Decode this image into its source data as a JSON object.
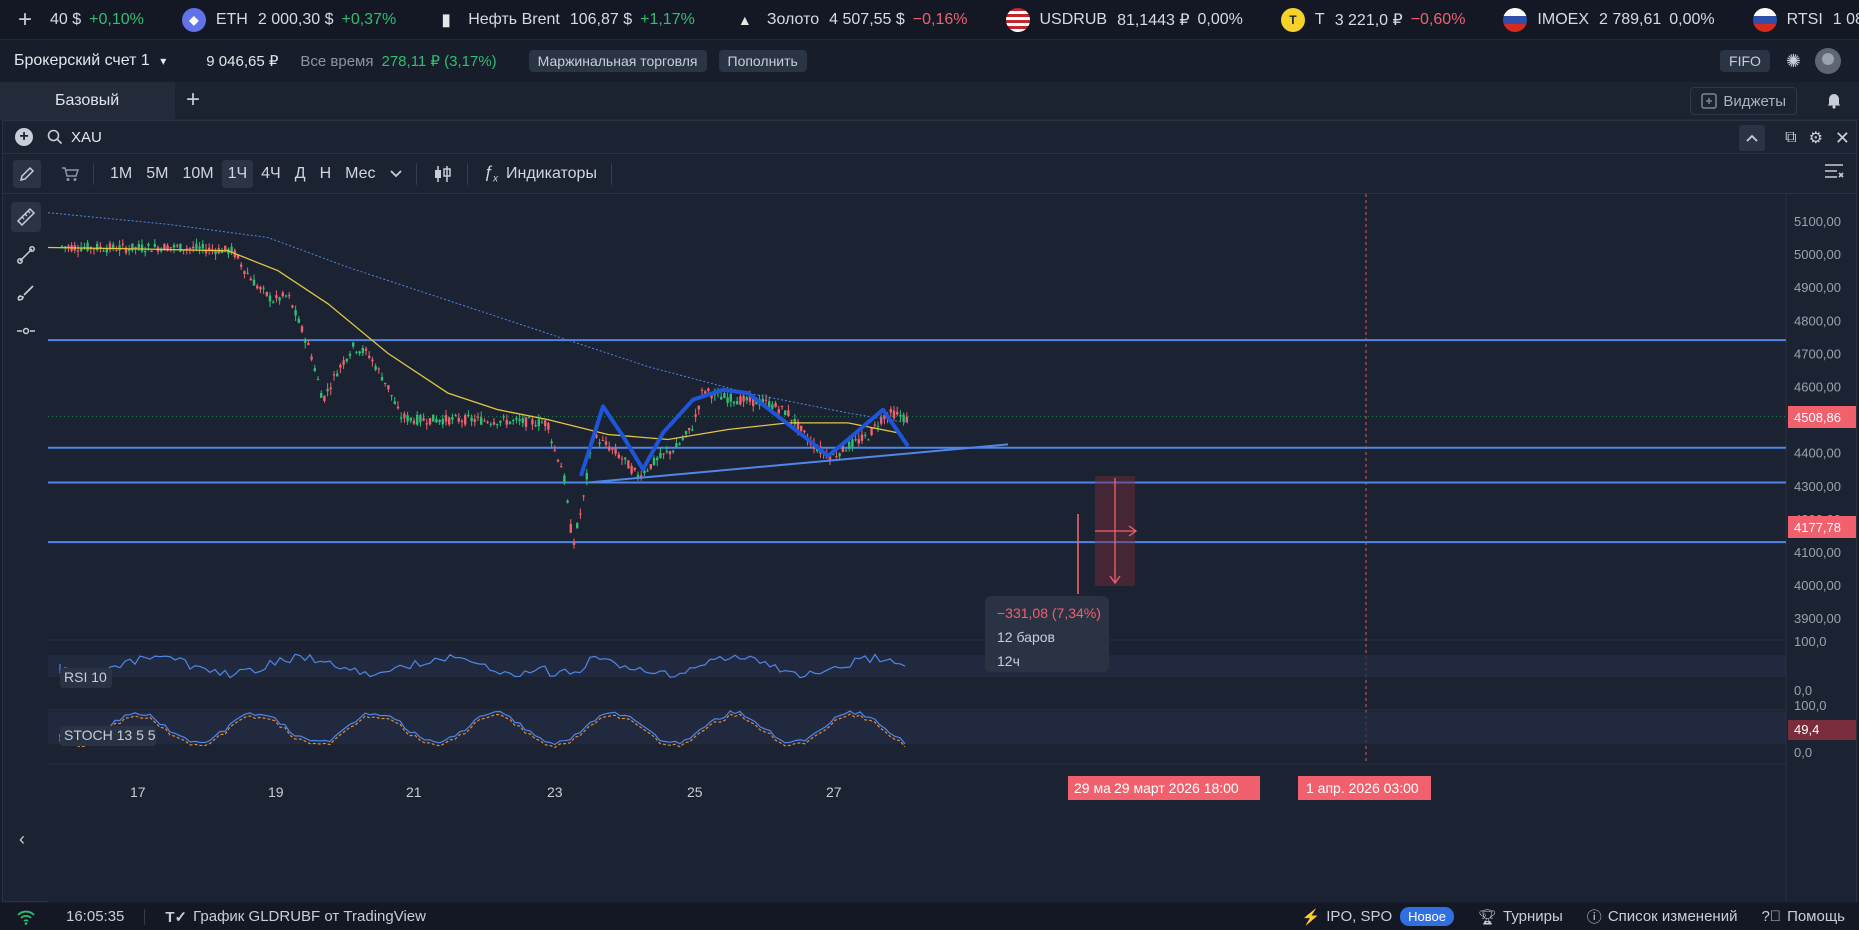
{
  "ticker": [
    {
      "name": "",
      "price": "40 $",
      "change": "+0,10%",
      "dir": "up",
      "icon": "none",
      "color": ""
    },
    {
      "name": "ETH",
      "price": "2 000,30 $",
      "change": "+0,37%",
      "dir": "up",
      "icon": "eth-icon",
      "color": "#6273ea"
    },
    {
      "name": "Нефть Brent",
      "price": "106,87 $",
      "change": "+1,17%",
      "dir": "up",
      "icon": "oil-barrel-icon",
      "color": "#e6e6e6"
    },
    {
      "name": "Золото",
      "price": "4 507,55 $",
      "change": "−0,16%",
      "dir": "dn",
      "icon": "gold-bars-icon",
      "color": "#e6e6e6"
    },
    {
      "name": "USDRUB",
      "price": "81,1443 ₽",
      "change": "0,00%",
      "dir": "flat",
      "icon": "us-flag-icon",
      "color": "#c1272d"
    },
    {
      "name": "Т",
      "price": "3 221,0 ₽",
      "change": "−0,60%",
      "dir": "dn",
      "icon": "tbank-logo-icon",
      "color": "#f5d22a"
    },
    {
      "name": "IMOEX",
      "price": "2 789,61",
      "change": "0,00%",
      "dir": "flat",
      "icon": "ru-flag-icon",
      "color": "#d52b1e"
    },
    {
      "name": "RTSI",
      "price": "1 08",
      "change": "",
      "dir": "flat",
      "icon": "ru-flag-icon",
      "color": "#d52b1e"
    }
  ],
  "account": {
    "name": "Брокерский счет 1",
    "balance": "9 046,65 ₽",
    "period": "Все время",
    "pnl": "278,11 ₽ (3,17%)",
    "margin_label": "Маржинальная торговля",
    "deposit_label": "Пополнить",
    "fifo_label": "FIFO"
  },
  "tabs": {
    "active": "Базовый",
    "widgets_label": "Виджеты"
  },
  "chart": {
    "symbol": "XAU",
    "timeframes": [
      "1M",
      "5M",
      "10M",
      "1Ч",
      "4Ч",
      "Д",
      "Н",
      "Мес"
    ],
    "active_timeframe": "1Ч",
    "indicators_label": "Индикаторы"
  },
  "chart_data": {
    "type": "candlestick",
    "price_axis_ticks": [
      "5100,00",
      "5000,00",
      "4900,00",
      "4800,00",
      "4700,00",
      "4600,00",
      "4500,00",
      "4400,00",
      "4300,00",
      "4200,00",
      "4100,00",
      "4000,00",
      "3900,00"
    ],
    "ylim": [
      3850,
      5165
    ],
    "date_ticks": [
      "17",
      "19",
      "21",
      "23",
      "25",
      "27"
    ],
    "current_price": "4508,86",
    "target_price": "4177,78",
    "horizontal_levels": [
      4740,
      4415,
      4310,
      4130
    ],
    "measurement": {
      "change": "−331,08 (7,34%)",
      "bars": "12 баров",
      "duration": "12ч"
    },
    "crosshair_time": "29 ма",
    "crosshair_date": "29 март 2026 18:00",
    "future_time_label": "1 апр. 2026 03:00",
    "rsi": {
      "label": "RSI 10",
      "ticks": [
        "100,0",
        "0,0"
      ]
    },
    "stoch": {
      "label": "STOCH 13 5 5",
      "ticks": [
        "100,0",
        "49,4",
        "0,0"
      ]
    }
  },
  "status": {
    "time": "16:05:35",
    "chart_credit": "График GLDRUBF от TradingView",
    "ipo": "IPO, SPO",
    "new_badge": "Новое",
    "tournaments": "Турниры",
    "changelog": "Список изменений",
    "help": "Помощь"
  }
}
